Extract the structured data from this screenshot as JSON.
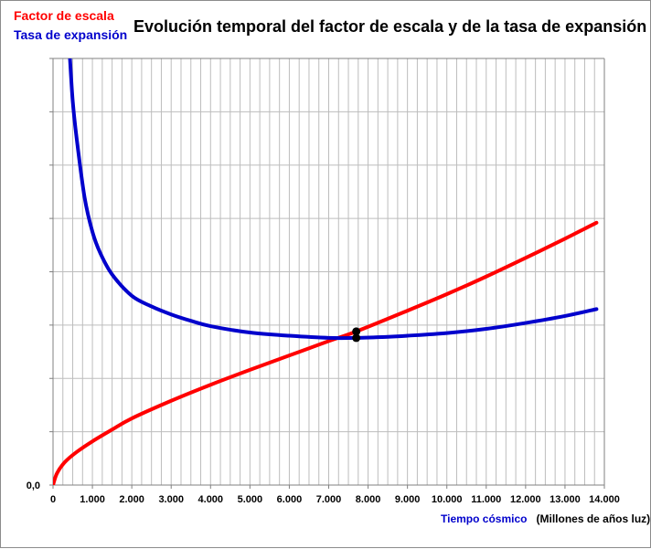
{
  "chart_data": {
    "type": "line",
    "title": "Evolución temporal del factor de escala y de la tasa de expansión",
    "xlabel": "Tiempo cósmico",
    "xlabel_units": "(Millones de años luz)",
    "ylabel": "",
    "xlim": [
      0,
      14000
    ],
    "ylim": [
      0,
      8
    ],
    "grid": true,
    "y_tick_label": "0,0",
    "x_tick_labels": [
      "0",
      "1.000",
      "2.000",
      "3.000",
      "4.000",
      "5.000",
      "6.000",
      "7.000",
      "8.000",
      "9.000",
      "10.000",
      "11.000",
      "12.000",
      "13.000",
      "14.000"
    ],
    "x_ticks": [
      0,
      1000,
      2000,
      3000,
      4000,
      5000,
      6000,
      7000,
      8000,
      9000,
      10000,
      11000,
      12000,
      13000,
      14000
    ],
    "series": [
      {
        "name": "Factor de escala",
        "color": "#ff0000",
        "x": [
          0,
          100,
          300,
          600,
          1000,
          1500,
          2000,
          3000,
          4000,
          5000,
          6000,
          7000,
          7700,
          9000,
          10000,
          11000,
          12000,
          13000,
          13800
        ],
        "values": [
          0.0,
          0.22,
          0.43,
          0.62,
          0.82,
          1.04,
          1.25,
          1.58,
          1.88,
          2.16,
          2.43,
          2.7,
          2.88,
          3.27,
          3.58,
          3.91,
          4.26,
          4.62,
          4.92
        ]
      },
      {
        "name": "Tasa de expansión",
        "color": "#0000cc",
        "x": [
          430,
          500,
          600,
          800,
          1000,
          1200,
          1500,
          2000,
          2500,
          3000,
          3500,
          4000,
          5000,
          6000,
          7000,
          7700,
          8500,
          9000,
          10000,
          11000,
          12000,
          13000,
          13800
        ],
        "values": [
          8.0,
          7.2,
          6.5,
          5.4,
          4.75,
          4.35,
          3.95,
          3.55,
          3.35,
          3.2,
          3.08,
          2.98,
          2.86,
          2.8,
          2.76,
          2.76,
          2.78,
          2.8,
          2.85,
          2.93,
          3.04,
          3.17,
          3.3
        ]
      }
    ],
    "markers": [
      {
        "series": "Tasa de expansión",
        "x": 7700,
        "y": 2.76
      },
      {
        "series": "Factor de escala",
        "x": 7700,
        "y": 2.88
      }
    ]
  }
}
